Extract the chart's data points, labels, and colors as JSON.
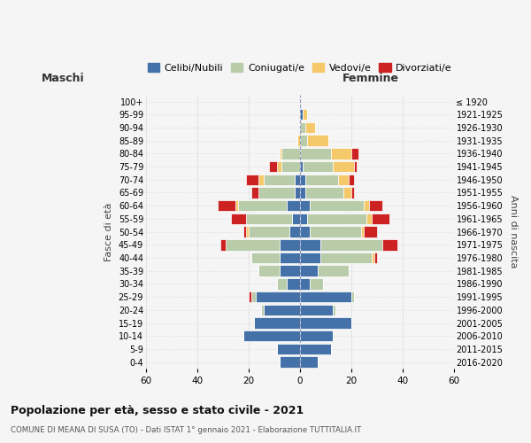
{
  "age_groups": [
    "0-4",
    "5-9",
    "10-14",
    "15-19",
    "20-24",
    "25-29",
    "30-34",
    "35-39",
    "40-44",
    "45-49",
    "50-54",
    "55-59",
    "60-64",
    "65-69",
    "70-74",
    "75-79",
    "80-84",
    "85-89",
    "90-94",
    "95-99",
    "100+"
  ],
  "birth_years": [
    "2016-2020",
    "2011-2015",
    "2006-2010",
    "2001-2005",
    "1996-2000",
    "1991-1995",
    "1986-1990",
    "1981-1985",
    "1976-1980",
    "1971-1975",
    "1966-1970",
    "1961-1965",
    "1956-1960",
    "1951-1955",
    "1946-1950",
    "1941-1945",
    "1936-1940",
    "1931-1935",
    "1926-1930",
    "1921-1925",
    "≤ 1920"
  ],
  "colors": {
    "celibi": "#4472a8",
    "coniugati": "#b8ccaa",
    "vedovi": "#f5c86a",
    "divorziati": "#cc2222"
  },
  "maschi": {
    "celibi": [
      8,
      9,
      22,
      18,
      14,
      17,
      5,
      8,
      8,
      8,
      4,
      3,
      5,
      2,
      2,
      0,
      0,
      0,
      0,
      0,
      0
    ],
    "coniugati": [
      0,
      0,
      0,
      0,
      1,
      2,
      4,
      8,
      11,
      21,
      16,
      18,
      19,
      14,
      12,
      7,
      7,
      0,
      0,
      0,
      0
    ],
    "vedovi": [
      0,
      0,
      0,
      0,
      0,
      0,
      0,
      0,
      0,
      0,
      1,
      0,
      1,
      0,
      2,
      2,
      1,
      1,
      0,
      0,
      0
    ],
    "divorziati": [
      0,
      0,
      0,
      0,
      0,
      1,
      0,
      0,
      0,
      2,
      1,
      6,
      7,
      3,
      5,
      3,
      0,
      0,
      0,
      0,
      0
    ]
  },
  "femmine": {
    "celibi": [
      7,
      12,
      13,
      20,
      13,
      20,
      4,
      7,
      8,
      8,
      4,
      3,
      4,
      2,
      2,
      1,
      0,
      0,
      0,
      1,
      0
    ],
    "coniugati": [
      0,
      0,
      0,
      0,
      1,
      1,
      5,
      12,
      20,
      24,
      20,
      23,
      21,
      15,
      13,
      12,
      12,
      3,
      2,
      0,
      0
    ],
    "vedovi": [
      0,
      0,
      0,
      0,
      0,
      0,
      0,
      0,
      1,
      0,
      1,
      2,
      2,
      3,
      4,
      8,
      8,
      8,
      4,
      2,
      0
    ],
    "divorziati": [
      0,
      0,
      0,
      0,
      0,
      0,
      0,
      0,
      1,
      6,
      5,
      7,
      5,
      1,
      2,
      1,
      3,
      0,
      0,
      0,
      0
    ]
  },
  "title": "Popolazione per età, sesso e stato civile - 2021",
  "subtitle": "COMUNE DI MEANA DI SUSA (TO) - Dati ISTAT 1° gennaio 2021 - Elaborazione TUTTITALIA.IT",
  "xlabel_left": "Maschi",
  "xlabel_right": "Femmine",
  "ylabel_left": "Fasce di età",
  "ylabel_right": "Anni di nascita",
  "legend_labels": [
    "Celibi/Nubili",
    "Coniugati/e",
    "Vedovi/e",
    "Divorziati/e"
  ],
  "xlim": 60,
  "bg_color": "#f5f5f5",
  "grid_color": "#cccccc"
}
